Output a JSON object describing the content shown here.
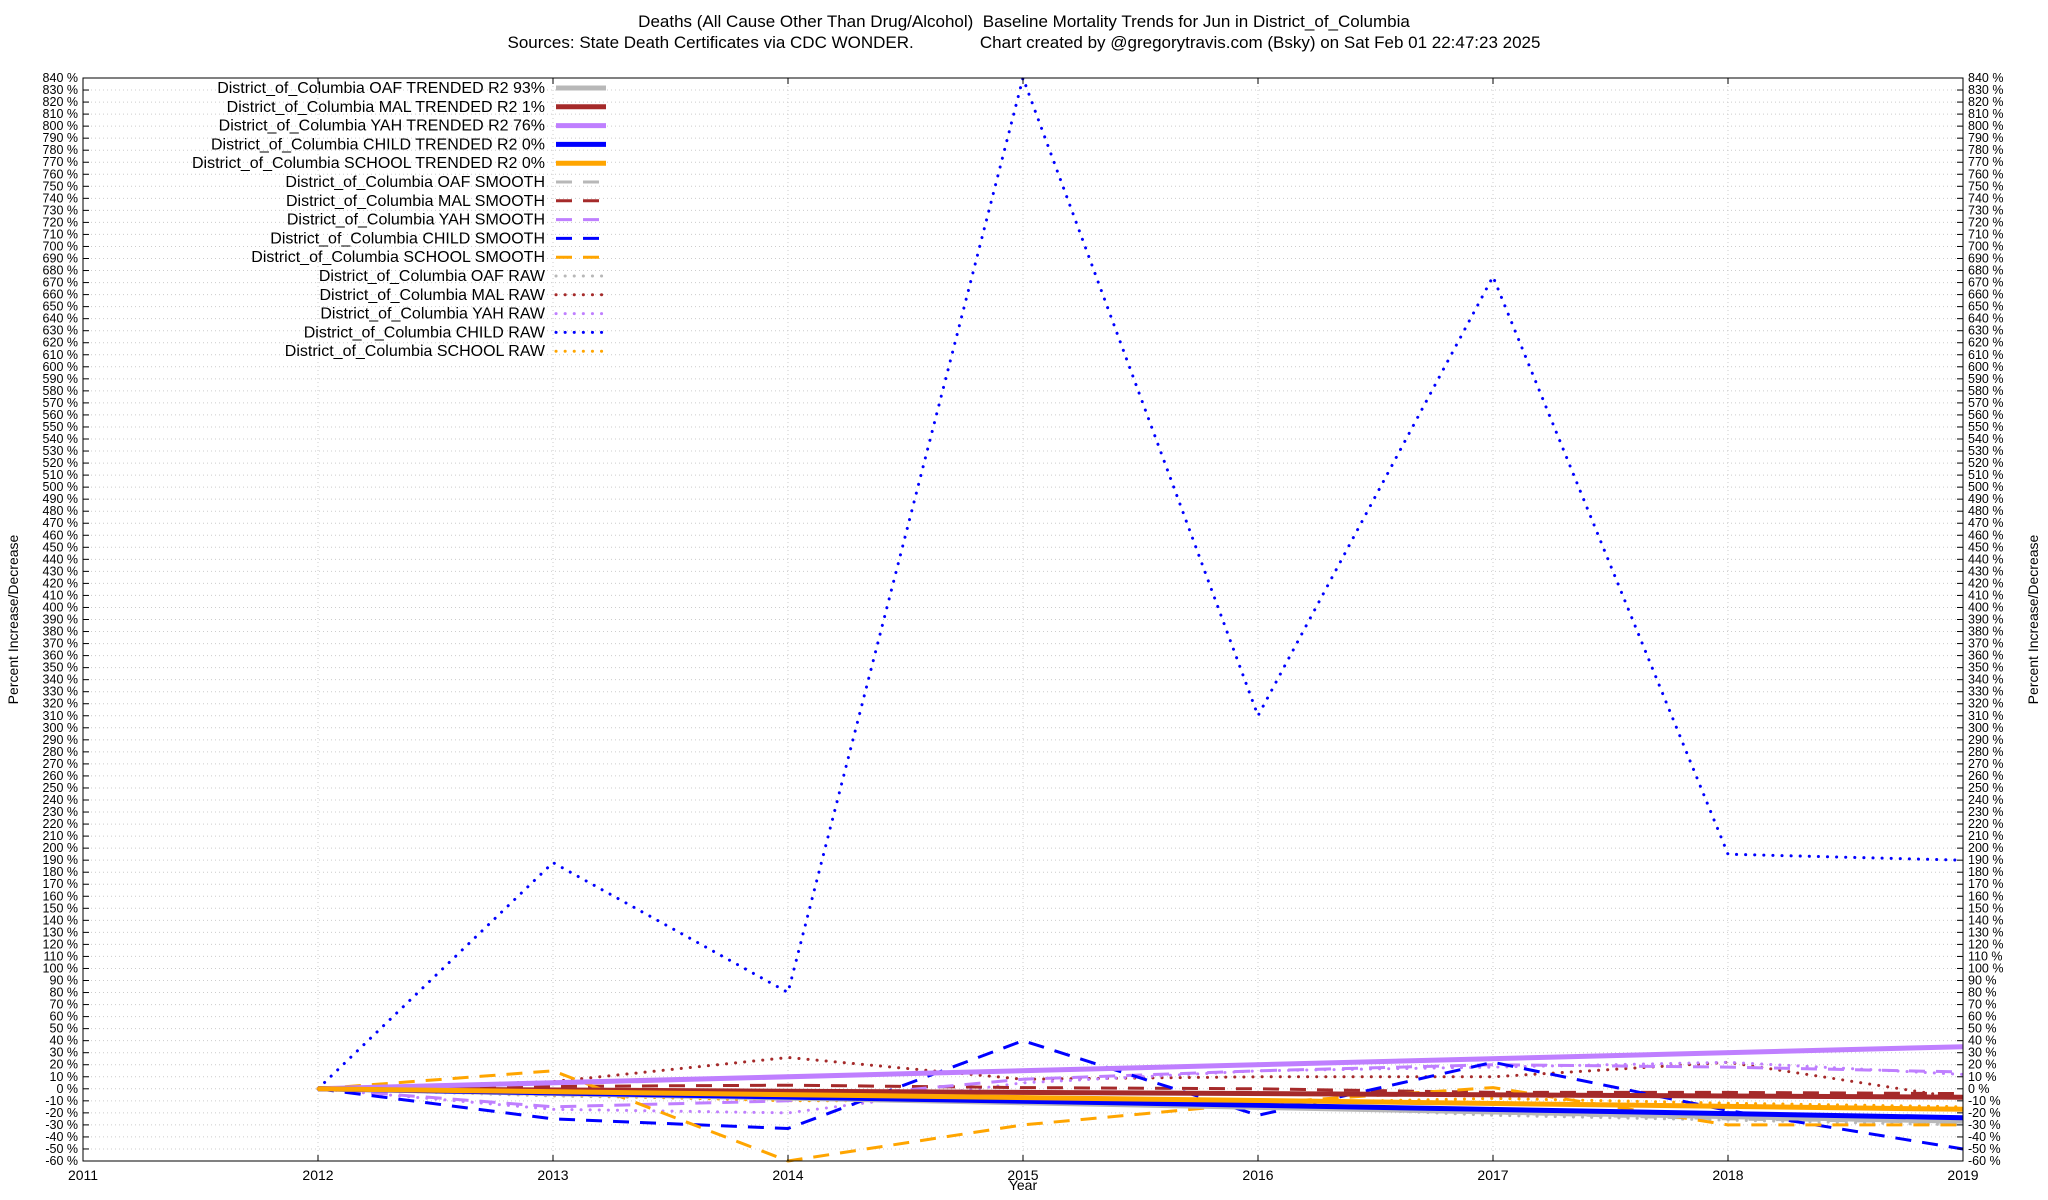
{
  "title": {
    "line1": "Deaths (All Cause Other Than Drug/Alcohol)  Baseline Mortality Trends for Jun in District_of_Columbia",
    "line2": "Sources: State Death Certificates via CDC WONDER.              Chart created by @gregorytravis.com (Bsky) on Sat Feb 01 22:47:23 2025"
  },
  "chart_data": {
    "type": "line",
    "xlabel": "Year",
    "ylabel": "Percent Increase/Decrease",
    "y2label": "Percent Increase/Decrease",
    "xlim": [
      2011,
      2019
    ],
    "ylim": [
      -60,
      840
    ],
    "x_ticks": [
      "2011",
      "2012",
      "2013",
      "2014",
      "2015",
      "2016",
      "2017",
      "2018",
      "2019"
    ],
    "y_tick_step": 10,
    "y_tick_suffix": " %",
    "grid": true,
    "legend_position": "top-left",
    "series": [
      {
        "name": "District_of_Columbia OAF TRENDED R2  93%",
        "color": "#b8b8b8",
        "style": "trend",
        "x": [
          2012,
          2019
        ],
        "y": [
          0,
          -27
        ]
      },
      {
        "name": "District_of_Columbia MAL TRENDED R2   1%",
        "color": "#a52a2a",
        "style": "trend",
        "x": [
          2012,
          2019
        ],
        "y": [
          0,
          -7
        ]
      },
      {
        "name": "District_of_Columbia YAH TRENDED R2  76%",
        "color": "#bf7fff",
        "style": "trend",
        "x": [
          2012,
          2019
        ],
        "y": [
          0,
          35
        ]
      },
      {
        "name": "District_of_Columbia CHILD TRENDED R2   0%",
        "color": "#0000ff",
        "style": "trend",
        "x": [
          2012,
          2019
        ],
        "y": [
          0,
          -24
        ]
      },
      {
        "name": "District_of_Columbia SCHOOL TRENDED R2   0%",
        "color": "#ffa500",
        "style": "trend",
        "x": [
          2012,
          2019
        ],
        "y": [
          0,
          -17
        ]
      },
      {
        "name": "District_of_Columbia OAF SMOOTH",
        "color": "#b8b8b8",
        "style": "smooth",
        "x": [
          2012,
          2013,
          2014,
          2015,
          2016,
          2017,
          2018,
          2019
        ],
        "y": [
          0,
          -5,
          -8,
          -10,
          -12,
          -20,
          -25,
          -28
        ]
      },
      {
        "name": "District_of_Columbia MAL SMOOTH",
        "color": "#a52a2a",
        "style": "smooth",
        "x": [
          2012,
          2013,
          2014,
          2015,
          2016,
          2017,
          2018,
          2019
        ],
        "y": [
          0,
          2,
          3,
          1,
          0,
          -3,
          -3,
          -4
        ]
      },
      {
        "name": "District_of_Columbia YAH SMOOTH",
        "color": "#bf7fff",
        "style": "smooth",
        "x": [
          2012,
          2013,
          2014,
          2015,
          2016,
          2017,
          2018,
          2019
        ],
        "y": [
          0,
          -15,
          -10,
          8,
          15,
          20,
          18,
          14
        ]
      },
      {
        "name": "District_of_Columbia CHILD SMOOTH",
        "color": "#0000ff",
        "style": "smooth",
        "x": [
          2012,
          2013,
          2014,
          2015,
          2016,
          2017,
          2018,
          2019
        ],
        "y": [
          0,
          -25,
          -33,
          40,
          -22,
          22,
          -18,
          -50
        ]
      },
      {
        "name": "District_of_Columbia SCHOOL SMOOTH",
        "color": "#ffa500",
        "style": "smooth",
        "x": [
          2012,
          2013,
          2014,
          2015,
          2016,
          2017,
          2018,
          2019
        ],
        "y": [
          0,
          15,
          -60,
          -30,
          -12,
          1,
          -30,
          -30
        ]
      },
      {
        "name": "District_of_Columbia OAF RAW",
        "color": "#b8b8b8",
        "style": "raw",
        "x": [
          2012,
          2013,
          2014,
          2015,
          2016,
          2017,
          2018,
          2019
        ],
        "y": [
          0,
          -6,
          -9,
          -11,
          -14,
          -22,
          -26,
          -30
        ]
      },
      {
        "name": "District_of_Columbia MAL RAW",
        "color": "#a52a2a",
        "style": "raw",
        "x": [
          2012,
          2013,
          2014,
          2015,
          2016,
          2017,
          2018,
          2019
        ],
        "y": [
          0,
          6,
          26,
          8,
          10,
          10,
          22,
          -8
        ]
      },
      {
        "name": "District_of_Columbia YAH RAW",
        "color": "#bf7fff",
        "style": "raw",
        "x": [
          2012,
          2013,
          2014,
          2015,
          2016,
          2017,
          2018,
          2019
        ],
        "y": [
          0,
          -17,
          -20,
          5,
          15,
          18,
          22,
          12
        ]
      },
      {
        "name": "District_of_Columbia CHILD RAW",
        "color": "#0000ff",
        "style": "raw",
        "x": [
          2012,
          2013,
          2014,
          2015,
          2016,
          2017,
          2018,
          2019
        ],
        "y": [
          0,
          188,
          80,
          840,
          310,
          675,
          195,
          190
        ]
      },
      {
        "name": "District_of_Columbia SCHOOL RAW",
        "color": "#ffa500",
        "style": "raw",
        "x": [
          2012,
          2013,
          2014,
          2015,
          2016,
          2017,
          2018,
          2019
        ],
        "y": [
          0,
          -5,
          -10,
          -10,
          -12,
          -8,
          -12,
          -15
        ]
      }
    ]
  }
}
